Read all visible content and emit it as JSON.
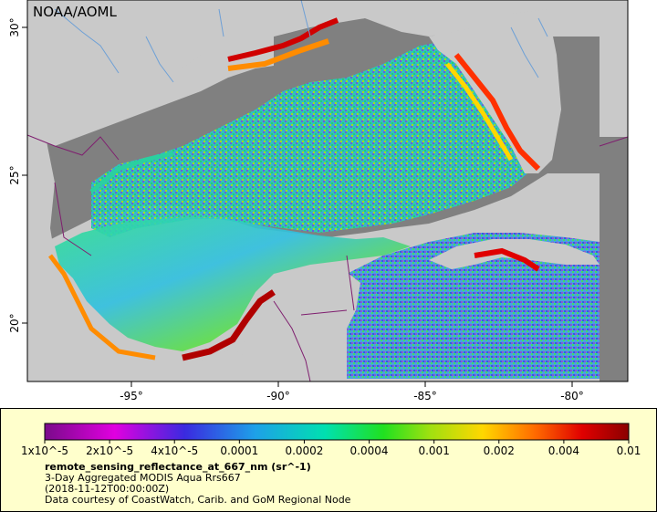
{
  "brand": "NOAA/AOML",
  "axes": {
    "lon_labels": [
      "-95°",
      "-90°",
      "-85°",
      "-80°"
    ],
    "lat_labels": [
      "30°",
      "25°",
      "20°"
    ]
  },
  "legend": {
    "tick_labels": [
      "1x10^-5",
      "2x10^-5",
      "4x10^-5",
      "0.0001",
      "0.0002",
      "0.0004",
      "0.001",
      "0.002",
      "0.004",
      "0.01"
    ],
    "variable": "remote_sensing_reflectance_at_667_nm (sr^-1)",
    "product": "3-Day Aggregated MODIS Aqua Rrs667",
    "date": "(2018-11-12T00:00:00Z)",
    "credit": "Data courtesy of CoastWatch, Carib. and GoM Regional Node"
  },
  "colors": {
    "land": "#c9c9c9",
    "no_data": "#808080",
    "border": "#7f1f6f",
    "river": "#6ea0d6",
    "legend_bg": "#ffffcc",
    "colormap": [
      "#7a0a8a",
      "#e000e0",
      "#3a2ae0",
      "#1ea0e8",
      "#00e0b0",
      "#20e020",
      "#a0e010",
      "#ffd700",
      "#ff6a00",
      "#e00000",
      "#8b0000"
    ]
  }
}
